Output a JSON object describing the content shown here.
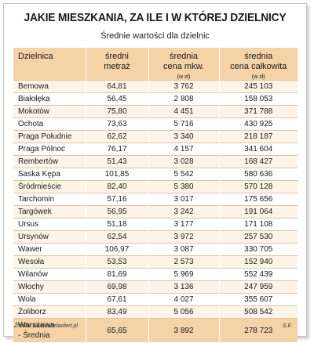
{
  "title": "JAKIE MIESZKANIA, ZA ILE I W KTÓREJ DZIELNICY",
  "subtitle": "Średnie wartości dla dzielnic",
  "headers": {
    "district": "Dzielnica",
    "area_line1": "średni",
    "area_line2": "metraż",
    "sqm_line1": "średnia",
    "sqm_line2": "cena mkw.",
    "sqm_unit": "(w zł)",
    "total_line1": "średnia",
    "total_line2": "cena całkowita",
    "total_unit": "(w zł)"
  },
  "rows": [
    {
      "district": "Bemowa",
      "area": "64,81",
      "price_sqm": "3 762",
      "price_total": "245 103"
    },
    {
      "district": "Białołęka",
      "area": "56,45",
      "price_sqm": "2 808",
      "price_total": "158 053"
    },
    {
      "district": "Mokotów",
      "area": "75,80",
      "price_sqm": "4 451",
      "price_total": "371 788"
    },
    {
      "district": "Ochota",
      "area": "73,63",
      "price_sqm": "5 716",
      "price_total": "430 925"
    },
    {
      "district": "Praga Południe",
      "area": "62,62",
      "price_sqm": "3 340",
      "price_total": "218 187"
    },
    {
      "district": "Praga Pólnoc",
      "area": "76,17",
      "price_sqm": "4 157",
      "price_total": "341 604"
    },
    {
      "district": "Rembertów",
      "area": "51,43",
      "price_sqm": "3 028",
      "price_total": "168 427"
    },
    {
      "district": "Saska Kępa",
      "area": "101,85",
      "price_sqm": "5 542",
      "price_total": "580 636"
    },
    {
      "district": "Śródmieście",
      "area": "82,40",
      "price_sqm": "5 380",
      "price_total": "570 128"
    },
    {
      "district": "Tarchomin",
      "area": "57,16",
      "price_sqm": "3 017",
      "price_total": "175 656"
    },
    {
      "district": "Targówek",
      "area": "56,95",
      "price_sqm": "3 242",
      "price_total": "191 064"
    },
    {
      "district": "Ursus",
      "area": "51,18",
      "price_sqm": "3 177",
      "price_total": "171 108"
    },
    {
      "district": "Ursynów",
      "area": "62,54",
      "price_sqm": "3 972",
      "price_total": "257 530"
    },
    {
      "district": "Wawer",
      "area": "106,97",
      "price_sqm": "3 087",
      "price_total": "330 705"
    },
    {
      "district": "Wesoła",
      "area": "53,53",
      "price_sqm": "2 573",
      "price_total": "152 940"
    },
    {
      "district": "Wilanów",
      "area": "81,69",
      "price_sqm": "5 969",
      "price_total": "552 439"
    },
    {
      "district": "Włochy",
      "area": "69,98",
      "price_sqm": "3 136",
      "price_total": "247 959"
    },
    {
      "district": "Wola",
      "area": "67,61",
      "price_sqm": "4 027",
      "price_total": "355 607"
    },
    {
      "district": "Żoliborz",
      "area": "83,49",
      "price_sqm": "5 056",
      "price_total": "508 542"
    }
  ],
  "summary": {
    "district_line1": "Warszawa",
    "district_line2": "- Średnia",
    "area": "65,65",
    "price_sqm": "3 892",
    "price_total": "278 723"
  },
  "footer": {
    "source": "Źródło: www.tabelaofert.pl",
    "author": "S.F."
  },
  "colors": {
    "header_bg": "#f3d3a7",
    "odd_row_bg": "#fdf4e7",
    "even_row_bg": "#ffffff"
  }
}
